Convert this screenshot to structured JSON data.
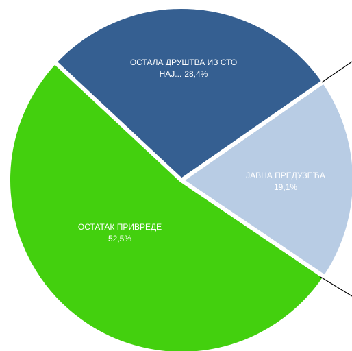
{
  "chart_data": {
    "type": "pie",
    "categories": [
      "ОСТАЛА ДРУШТВА ИЗ СТО НАЈ...",
      "ЈАВНА ПРЕДУЗЕЋА",
      "ОСТАТАК ПРИВРЕДЕ"
    ],
    "values": [
      28.4,
      19.1,
      52.5
    ],
    "value_labels": [
      "28,4%",
      "19,1%",
      "52,5%"
    ],
    "colors": [
      "#355f91",
      "#b8cce4",
      "#43d00e"
    ]
  }
}
